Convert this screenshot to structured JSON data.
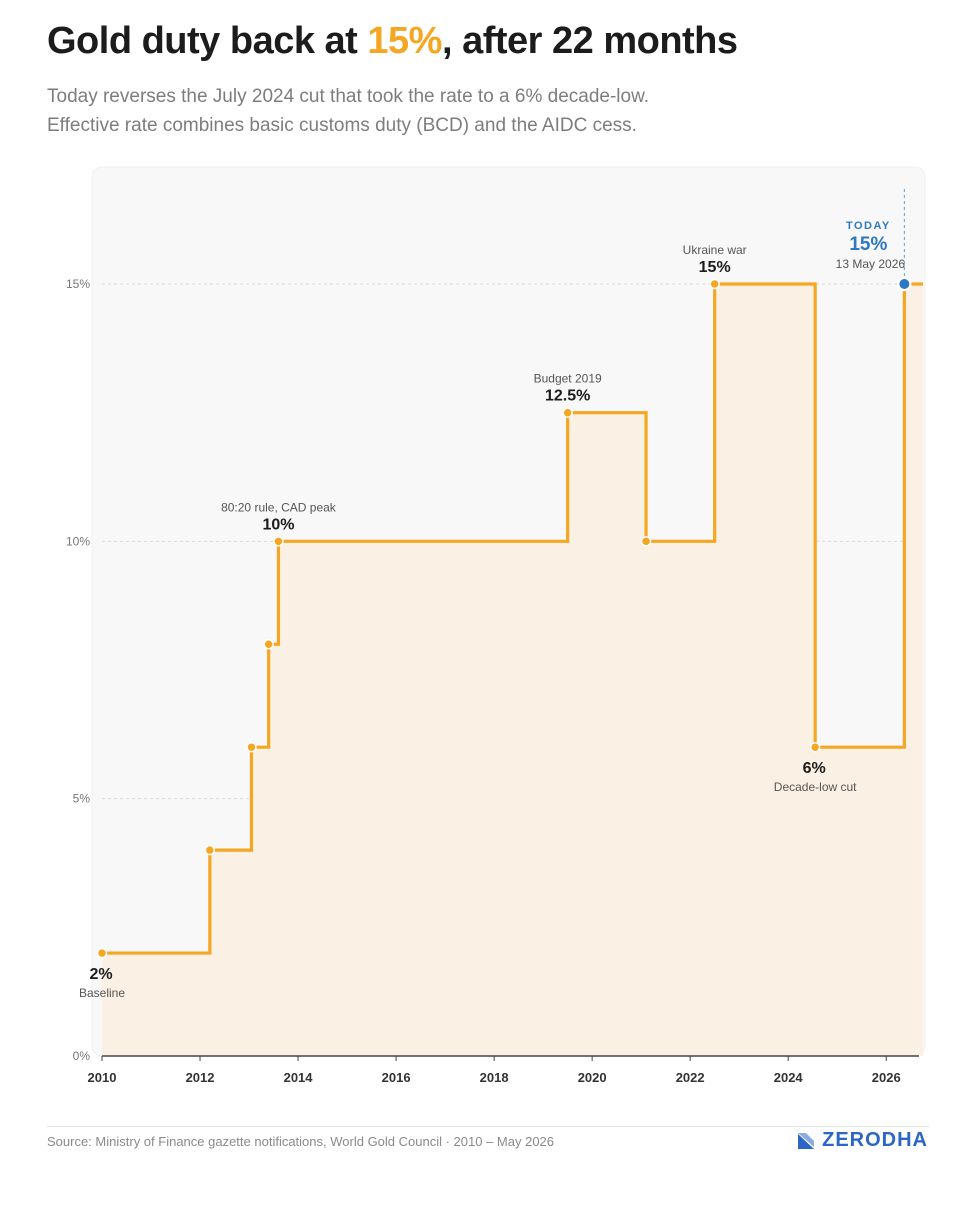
{
  "header": {
    "title_pre": "Gold duty back at ",
    "title_accent": "15%",
    "title_post": ", after 22 months",
    "subtitle_line1": "Today reverses the July 2024 cut that took the rate to a 6% decade-low.",
    "subtitle_line2": "Effective rate combines basic customs duty (BCD) and the AIDC cess."
  },
  "colors": {
    "accent": "#f5a623",
    "today_blue": "#2f78c4",
    "fill": "#faf1e4",
    "plot_bg": "#f8f8f8"
  },
  "chart_data": {
    "type": "line",
    "step": true,
    "x_unit": "year",
    "xlim": [
      2010,
      2026.75
    ],
    "ylim": [
      0,
      17
    ],
    "x_ticks": [
      2010,
      2012,
      2014,
      2016,
      2018,
      2020,
      2022,
      2024,
      2026
    ],
    "x_tick_labels": [
      "2010",
      "2012",
      "2014",
      "2016",
      "2018",
      "2020",
      "2022",
      "2024",
      "2026"
    ],
    "y_ticks": [
      0,
      5,
      10,
      15
    ],
    "y_tick_labels": [
      "0%",
      "5%",
      "10%",
      "15%"
    ],
    "grid": true,
    "series": [
      {
        "values": [
          {
            "x": 2010.0,
            "y": 2
          },
          {
            "x": 2012.2,
            "y": 4
          },
          {
            "x": 2013.05,
            "y": 6
          },
          {
            "x": 2013.4,
            "y": 8
          },
          {
            "x": 2013.6,
            "y": 10
          },
          {
            "x": 2019.5,
            "y": 12.5
          },
          {
            "x": 2021.1,
            "y": 10
          },
          {
            "x": 2022.5,
            "y": 15
          },
          {
            "x": 2024.55,
            "y": 6
          },
          {
            "x": 2026.37,
            "y": 15
          }
        ],
        "end_x": 2026.75
      }
    ],
    "annotations": [
      {
        "value": "2%",
        "label": "Baseline",
        "anchor_index": 0,
        "position": "below"
      },
      {
        "value": "10%",
        "label": "80:20 rule, CAD peak",
        "anchor_index": 4,
        "position": "above"
      },
      {
        "value": "12.5%",
        "label": "Budget 2019",
        "anchor_index": 5,
        "position": "above"
      },
      {
        "value": "15%",
        "label": "Ukraine war",
        "anchor_index": 7,
        "position": "above"
      },
      {
        "value": "6%",
        "label": "Decade-low cut",
        "anchor_index": 8,
        "position": "below"
      }
    ],
    "today": {
      "tag": "TODAY",
      "value": "15%",
      "date": "13 May 2026",
      "anchor_index": 9
    }
  },
  "footer": {
    "source": "Source: Ministry of Finance gazette notifications, World Gold Council · 2010 – May 2026",
    "brand": "ZERODHA"
  }
}
